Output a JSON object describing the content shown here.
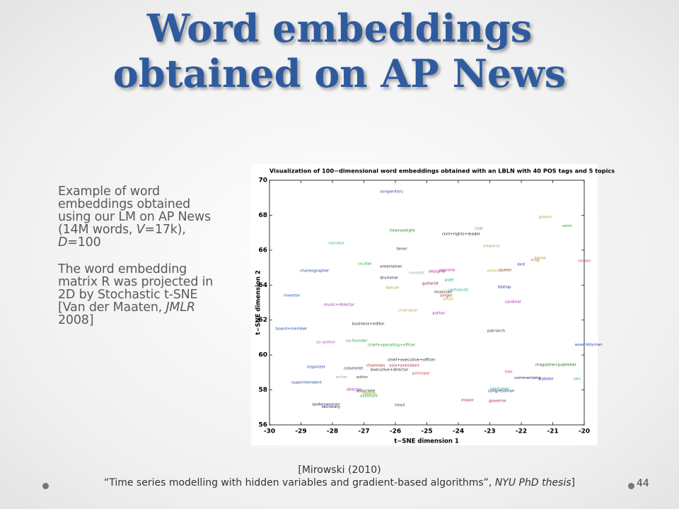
{
  "slide": {
    "title": [
      "Word embeddings",
      "obtained on AP News"
    ],
    "paragraphs": [
      [
        "Example of word embeddings obtained using our LM on AP News (14M words, ",
        "V",
        "=17k), ",
        "D",
        "=100"
      ],
      [
        "The word embedding matrix R was projected in 2D by Stochastic t-SNE [Van der Maaten, ",
        "JMLR",
        " 2008]"
      ]
    ],
    "footer": [
      "[Mirowski (2010)",
      "“Time series modelling with hidden variables and gradient-based algorithms”, ",
      "NYU PhD thesis",
      "]"
    ],
    "page_number": "44"
  },
  "chart_data": {
    "type": "text-scatter",
    "title": "Visualization of 100−dimensional word embeddings obtained with an LBLN with 40 POS tags and 5 topics",
    "x_label": "t−SNE dimension 1",
    "y_label": "t−SNE dimension 2",
    "xlim": [
      -30,
      -20
    ],
    "ylim": [
      56,
      70
    ],
    "xticks": [
      -30,
      -29,
      -28,
      -27,
      -26,
      -25,
      -24,
      -23,
      -22,
      -21,
      -20
    ],
    "yticks": [
      56,
      58,
      60,
      62,
      64,
      66,
      68,
      70
    ],
    "points": [
      {
        "label": "songwriters",
        "x": -26.49,
        "y": 69.35,
        "color": "#2040c0"
      },
      {
        "label": "groom",
        "x": -21.44,
        "y": 67.89,
        "color": "#a0a040"
      },
      {
        "label": "saint",
        "x": -20.7,
        "y": 67.4,
        "color": "#20a020"
      },
      {
        "label": "heavyweight",
        "x": -26.18,
        "y": 67.13,
        "color": "#208020"
      },
      {
        "label": "czar",
        "x": -23.48,
        "y": 67.25,
        "color": "#20a080"
      },
      {
        "label": "civil+rights+leader",
        "x": -24.52,
        "y": 66.92,
        "color": "#202020"
      },
      {
        "label": "narrator",
        "x": -28.13,
        "y": 66.4,
        "color": "#40a0c0"
      },
      {
        "label": "tenor",
        "x": -25.96,
        "y": 66.07,
        "color": "#202060"
      },
      {
        "label": "emperor",
        "x": -23.21,
        "y": 66.23,
        "color": "#a0a060"
      },
      {
        "label": "baron",
        "x": -21.57,
        "y": 65.55,
        "color": "#c08020"
      },
      {
        "label": "king",
        "x": -21.69,
        "y": 65.43,
        "color": "#a08020"
      },
      {
        "label": "roman",
        "x": -20.2,
        "y": 65.38,
        "color": "#c04040"
      },
      {
        "label": "lord",
        "x": -22.13,
        "y": 65.18,
        "color": "#2020a0"
      },
      {
        "label": "co-star",
        "x": -27.19,
        "y": 65.22,
        "color": "#20a020"
      },
      {
        "label": "entertainer",
        "x": -26.49,
        "y": 65.06,
        "color": "#202020"
      },
      {
        "label": "choreographer",
        "x": -29.03,
        "y": 64.82,
        "color": "#2040a0"
      },
      {
        "label": "novelist",
        "x": -25.57,
        "y": 64.7,
        "color": "#a0a0a0"
      },
      {
        "label": "designer",
        "x": -24.94,
        "y": 64.78,
        "color": "#a02060"
      },
      {
        "label": "soprano",
        "x": -24.61,
        "y": 64.86,
        "color": "#a020a0"
      },
      {
        "label": "prince",
        "x": -23.08,
        "y": 64.82,
        "color": "#c0a020"
      },
      {
        "label": "queen",
        "x": -22.7,
        "y": 64.86,
        "color": "#a02020"
      },
      {
        "label": "drummer",
        "x": -26.49,
        "y": 64.41,
        "color": "#202040"
      },
      {
        "label": "poet",
        "x": -24.43,
        "y": 64.29,
        "color": "#20a040"
      },
      {
        "label": "guitarist",
        "x": -25.15,
        "y": 64.09,
        "color": "#802020"
      },
      {
        "label": "bishop",
        "x": -22.74,
        "y": 63.89,
        "color": "#202080"
      },
      {
        "label": "dancer",
        "x": -26.31,
        "y": 63.84,
        "color": "#a0a040"
      },
      {
        "label": "cartoonist",
        "x": -24.31,
        "y": 63.72,
        "color": "#20a0a0"
      },
      {
        "label": "musician",
        "x": -24.76,
        "y": 63.6,
        "color": "#202020"
      },
      {
        "label": "singer",
        "x": -24.58,
        "y": 63.4,
        "color": "#a02020"
      },
      {
        "label": "inventor",
        "x": -29.55,
        "y": 63.4,
        "color": "#2040c0"
      },
      {
        "label": "artist",
        "x": -24.49,
        "y": 63.2,
        "color": "#c0a020"
      },
      {
        "label": "cardinal",
        "x": -22.52,
        "y": 63.04,
        "color": "#a020a0"
      },
      {
        "label": "music+director",
        "x": -28.27,
        "y": 62.87,
        "color": "#a020a0"
      },
      {
        "label": "champion",
        "x": -25.91,
        "y": 62.55,
        "color": "#c0a040"
      },
      {
        "label": "author",
        "x": -24.83,
        "y": 62.39,
        "color": "#a020a0"
      },
      {
        "label": "business+editor",
        "x": -27.37,
        "y": 61.78,
        "color": "#202020"
      },
      {
        "label": "board+member",
        "x": -29.8,
        "y": 61.5,
        "color": "#2040c0"
      },
      {
        "label": "patriarch",
        "x": -23.08,
        "y": 61.38,
        "color": "#602020"
      },
      {
        "label": "co-author",
        "x": -28.52,
        "y": 60.73,
        "color": "#c040c0"
      },
      {
        "label": "co-founder",
        "x": -27.57,
        "y": 60.81,
        "color": "#20a040"
      },
      {
        "label": "assemblyman",
        "x": -20.3,
        "y": 60.6,
        "color": "#2040c0"
      },
      {
        "label": "chief+operating+officer",
        "x": -26.88,
        "y": 60.57,
        "color": "#20a020"
      },
      {
        "label": "chief+executive+officer",
        "x": -26.25,
        "y": 59.72,
        "color": "#202020"
      },
      {
        "label": "magazine+publisher",
        "x": -21.55,
        "y": 59.43,
        "color": "#206020"
      },
      {
        "label": "vice+president",
        "x": -26.2,
        "y": 59.39,
        "color": "#a02060"
      },
      {
        "label": "chairman",
        "x": -26.92,
        "y": 59.39,
        "color": "#a02020"
      },
      {
        "label": "organizer",
        "x": -28.81,
        "y": 59.31,
        "color": "#2040a0"
      },
      {
        "label": "columnist",
        "x": -27.64,
        "y": 59.23,
        "color": "#202060"
      },
      {
        "label": "executive+director",
        "x": -26.79,
        "y": 59.15,
        "color": "#202020"
      },
      {
        "label": "heir",
        "x": -22.52,
        "y": 59.03,
        "color": "#c04040"
      },
      {
        "label": "principal",
        "x": -25.46,
        "y": 58.95,
        "color": "#c04040"
      },
      {
        "label": "writer",
        "x": -27.89,
        "y": 58.74,
        "color": "#a0a0a0"
      },
      {
        "label": "editor",
        "x": -27.24,
        "y": 58.74,
        "color": "#404040"
      },
      {
        "label": "commentator",
        "x": -22.22,
        "y": 58.7,
        "color": "#202060"
      },
      {
        "label": "pollster",
        "x": -21.44,
        "y": 58.62,
        "color": "#2020a0"
      },
      {
        "label": "sen",
        "x": -20.34,
        "y": 58.62,
        "color": "#20a0a0"
      },
      {
        "label": "superintendent",
        "x": -29.3,
        "y": 58.42,
        "color": "#2040a0"
      },
      {
        "label": "lawmaker",
        "x": -22.99,
        "y": 58.06,
        "color": "#20a0a0"
      },
      {
        "label": "director",
        "x": -27.55,
        "y": 58.02,
        "color": "#a020a0"
      },
      {
        "label": "associate",
        "x": -27.24,
        "y": 57.94,
        "color": "#202020"
      },
      {
        "label": "congressman",
        "x": -23.06,
        "y": 57.94,
        "color": "#202060"
      },
      {
        "label": "deputy",
        "x": -27.05,
        "y": 57.8,
        "color": "#a0a020"
      },
      {
        "label": "assistant",
        "x": -27.12,
        "y": 57.65,
        "color": "#20a020"
      },
      {
        "label": "mayor",
        "x": -23.91,
        "y": 57.41,
        "color": "#a02020"
      },
      {
        "label": "governor",
        "x": -23.03,
        "y": 57.37,
        "color": "#a02020"
      },
      {
        "label": "spokeswoman",
        "x": -28.65,
        "y": 57.17,
        "color": "#202060"
      },
      {
        "label": "head",
        "x": -26.02,
        "y": 57.13,
        "color": "#404040"
      },
      {
        "label": "secretary",
        "x": -28.34,
        "y": 57.04,
        "color": "#202060"
      }
    ]
  }
}
